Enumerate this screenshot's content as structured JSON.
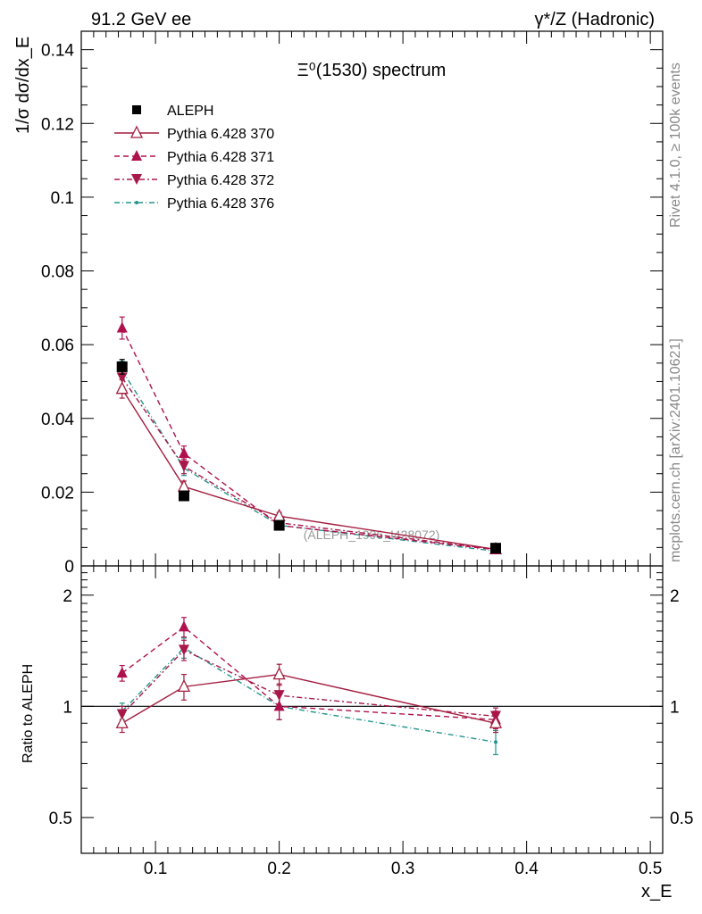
{
  "header": {
    "left_title": "91.2 GeV ee",
    "right_title": "γ*/Z (Hadronic)"
  },
  "side_text": {
    "rivet": "Rivet 4.1.0, ≥ 100k events",
    "mcplots": "mcplots.cern.ch [arXiv:2401.10621]"
  },
  "chart_data": [
    {
      "type": "line",
      "title": "Ξ⁰(1530) spectrum",
      "ylabel": "1/σ  dσ/dx_E",
      "xlabel": "x_E",
      "xlim": [
        0.04,
        0.51
      ],
      "ylim": [
        0,
        0.145
      ],
      "watermark": "(ALEPH_1996_I428072)",
      "x": [
        0.073,
        0.123,
        0.2,
        0.375
      ],
      "yticks": [
        0,
        0.02,
        0.04,
        0.06,
        0.08,
        0.1,
        0.12,
        0.14
      ],
      "ytick_labels": [
        "0",
        "0.02",
        "0.04",
        "0.06",
        "0.08",
        "0.1",
        "0.12",
        "0.14"
      ],
      "series": [
        {
          "name": "ALEPH",
          "values": [
            0.054,
            0.019,
            0.011,
            0.0048
          ],
          "errors": [
            0.002,
            0.001,
            0.001,
            0.0005
          ],
          "color": "#000000",
          "marker": "square",
          "dash": "none"
        },
        {
          "name": "Pythia 6.428 370",
          "values": [
            0.048,
            0.0215,
            0.0135,
            0.0045
          ],
          "errors": [
            0.0025,
            0.0015,
            0.001,
            0.0004
          ],
          "color": "#a31d3f",
          "marker": "triangle-open",
          "dash": "solid"
        },
        {
          "name": "Pythia 6.428 371",
          "values": [
            0.0645,
            0.0305,
            0.011,
            0.0044
          ],
          "errors": [
            0.003,
            0.002,
            0.001,
            0.0004
          ],
          "color": "#b0104d",
          "marker": "triangle",
          "dash": "6,4"
        },
        {
          "name": "Pythia 6.428 372",
          "values": [
            0.051,
            0.027,
            0.0117,
            0.0045
          ],
          "errors": [
            0.0025,
            0.002,
            0.001,
            0.0004
          ],
          "color": "#a8184a",
          "marker": "triangle-down",
          "dash": "6,3,2,3"
        },
        {
          "name": "Pythia 6.428 376",
          "values": [
            0.053,
            0.0265,
            0.011,
            0.004
          ],
          "errors": [
            0.0025,
            0.002,
            0.001,
            0.0004
          ],
          "color": "#23958c",
          "marker": "dot",
          "dash": "6,3,1,3"
        }
      ]
    },
    {
      "type": "line",
      "title": "",
      "ylabel": "Ratio to ALEPH",
      "xlabel": "x_E",
      "xlim": [
        0.04,
        0.51
      ],
      "ylim_log": [
        0.4,
        2.4
      ],
      "x": [
        0.073,
        0.123,
        0.2,
        0.375
      ],
      "yticks": [
        0.5,
        1,
        2
      ],
      "ytick_labels": [
        "0.5",
        "1",
        "2"
      ],
      "xticks": [
        0.1,
        0.2,
        0.3,
        0.4,
        0.5
      ],
      "xtick_labels": [
        "0.1",
        "0.2",
        "0.3",
        "0.4",
        "0.5"
      ],
      "series": [
        {
          "name": "ALEPH",
          "values": [
            1,
            1,
            1,
            1
          ],
          "errors": [
            0,
            0,
            0,
            0
          ],
          "color": "#000000",
          "marker": "none",
          "dash": "none"
        },
        {
          "name": "Pythia 6.428 370",
          "values": [
            0.9,
            1.13,
            1.22,
            0.9
          ],
          "errors": [
            0.05,
            0.09,
            0.08,
            0.05
          ],
          "color": "#a31d3f",
          "marker": "triangle-open",
          "dash": "solid"
        },
        {
          "name": "Pythia 6.428 371",
          "values": [
            1.23,
            1.64,
            1.0,
            0.92
          ],
          "errors": [
            0.06,
            0.1,
            0.08,
            0.05
          ],
          "color": "#b0104d",
          "marker": "triangle",
          "dash": "6,4"
        },
        {
          "name": "Pythia 6.428 372",
          "values": [
            0.95,
            1.42,
            1.07,
            0.94
          ],
          "errors": [
            0.05,
            0.09,
            0.08,
            0.05
          ],
          "color": "#a8184a",
          "marker": "triangle-down",
          "dash": "6,3,2,3"
        },
        {
          "name": "Pythia 6.428 376",
          "values": [
            0.97,
            1.44,
            1.0,
            0.8
          ],
          "errors": [
            0.05,
            0.09,
            0.08,
            0.06
          ],
          "color": "#23958c",
          "marker": "dot",
          "dash": "6,3,1,3"
        }
      ]
    }
  ]
}
